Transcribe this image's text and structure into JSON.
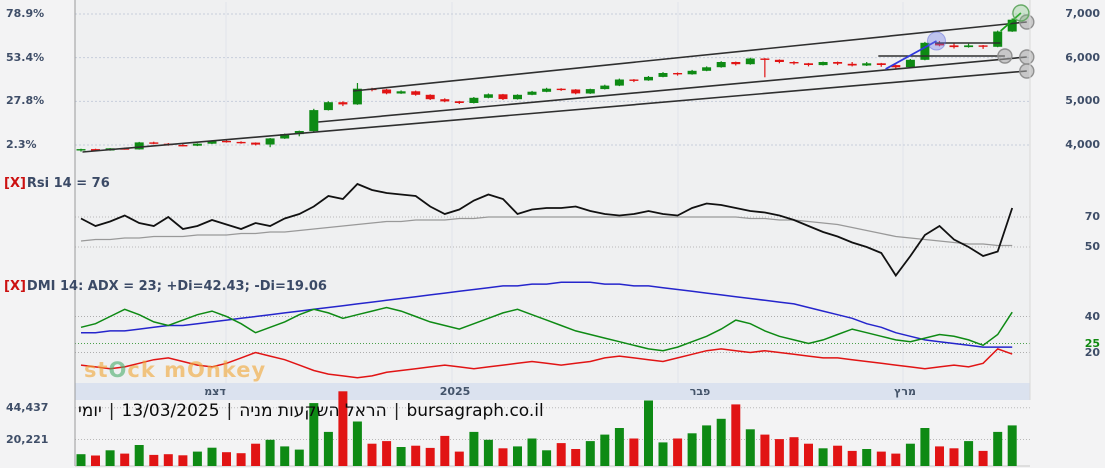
{
  "watermark": {
    "text_left": "st",
    "letter1": "O",
    "text_mid": "ck m",
    "letter2": "O",
    "text_right": "nkey"
  },
  "title": {
    "tokens": [
      "יומי",
      "13/03/2025",
      "הראל השקעות מניה",
      "bursagraph.co.il"
    ],
    "separator": "|"
  },
  "months": [
    "דצמ",
    "2025",
    "פבר",
    "מרץ"
  ],
  "colors": {
    "up": "#0e8a14",
    "down": "#e11414",
    "trend": "#2f2f2f",
    "blue_line": "#3038dd",
    "green_line": "#17a017",
    "axis_text": "#3f4e68",
    "strip_bg": "#dbe2ef",
    "grid": "#c7cedb"
  },
  "chart_data": [
    {
      "type": "candlestick",
      "name": "price-panel",
      "close_label": "[X]",
      "left_axis": [
        {
          "label": "78.9%",
          "price": 7000
        },
        {
          "label": "53.4%",
          "price": 6000
        },
        {
          "label": "27.8%",
          "price": 5000
        },
        {
          "label": "2.3%",
          "price": 4000
        }
      ],
      "right_axis": [
        {
          "label": "7,000",
          "price": 7000
        },
        {
          "label": "6,000",
          "price": 6000
        },
        {
          "label": "5,000",
          "price": 5000
        },
        {
          "label": "4,000",
          "price": 4000
        }
      ],
      "candles": [
        [
          3895,
          3915,
          3850,
          3905
        ],
        [
          3905,
          3915,
          3860,
          3875
        ],
        [
          3875,
          3930,
          3870,
          3925
        ],
        [
          3925,
          3940,
          3895,
          3900
        ],
        [
          3900,
          4070,
          3895,
          4060
        ],
        [
          4060,
          4075,
          4015,
          4030
        ],
        [
          4030,
          4045,
          3985,
          4000
        ],
        [
          4000,
          4020,
          3970,
          3985
        ],
        [
          3985,
          4040,
          3975,
          4030
        ],
        [
          4030,
          4105,
          4020,
          4095
        ],
        [
          4095,
          4110,
          4055,
          4070
        ],
        [
          4070,
          4085,
          4030,
          4055
        ],
        [
          4055,
          4060,
          3990,
          4010
        ],
        [
          4010,
          4160,
          3950,
          4150
        ],
        [
          4150,
          4260,
          4140,
          4250
        ],
        [
          4250,
          4330,
          4200,
          4320
        ],
        [
          4320,
          4830,
          4310,
          4800
        ],
        [
          4800,
          5000,
          4790,
          4980
        ],
        [
          4980,
          5000,
          4890,
          4930
        ],
        [
          4930,
          5420,
          4920,
          5290
        ],
        [
          5290,
          5310,
          5230,
          5270
        ],
        [
          5270,
          5285,
          5160,
          5180
        ],
        [
          5180,
          5250,
          5170,
          5230
        ],
        [
          5230,
          5245,
          5130,
          5150
        ],
        [
          5150,
          5160,
          5030,
          5050
        ],
        [
          5050,
          5070,
          4980,
          5000
        ],
        [
          5000,
          5010,
          4940,
          4960
        ],
        [
          4960,
          5100,
          4950,
          5080
        ],
        [
          5080,
          5180,
          5070,
          5160
        ],
        [
          5160,
          5170,
          5030,
          5050
        ],
        [
          5050,
          5160,
          5040,
          5150
        ],
        [
          5150,
          5240,
          5140,
          5220
        ],
        [
          5220,
          5310,
          5210,
          5290
        ],
        [
          5290,
          5300,
          5240,
          5270
        ],
        [
          5270,
          5280,
          5160,
          5180
        ],
        [
          5180,
          5290,
          5170,
          5280
        ],
        [
          5280,
          5380,
          5270,
          5360
        ],
        [
          5360,
          5520,
          5350,
          5500
        ],
        [
          5500,
          5510,
          5440,
          5480
        ],
        [
          5480,
          5580,
          5470,
          5560
        ],
        [
          5560,
          5670,
          5550,
          5650
        ],
        [
          5650,
          5660,
          5590,
          5620
        ],
        [
          5620,
          5720,
          5610,
          5700
        ],
        [
          5700,
          5800,
          5690,
          5780
        ],
        [
          5780,
          5920,
          5770,
          5900
        ],
        [
          5900,
          5910,
          5820,
          5850
        ],
        [
          5850,
          6000,
          5840,
          5980
        ],
        [
          5980,
          5990,
          5550,
          5950
        ],
        [
          5950,
          5960,
          5870,
          5900
        ],
        [
          5900,
          5920,
          5840,
          5870
        ],
        [
          5870,
          5880,
          5800,
          5830
        ],
        [
          5830,
          5910,
          5820,
          5900
        ],
        [
          5900,
          5910,
          5830,
          5860
        ],
        [
          5860,
          5900,
          5800,
          5820
        ],
        [
          5820,
          5900,
          5810,
          5870
        ],
        [
          5870,
          5880,
          5790,
          5830
        ],
        [
          5830,
          5840,
          5740,
          5780
        ],
        [
          5780,
          5970,
          5770,
          5950
        ],
        [
          5950,
          6360,
          5940,
          6340
        ],
        [
          6340,
          6380,
          6260,
          6280
        ],
        [
          6280,
          6330,
          6210,
          6240
        ],
        [
          6240,
          6320,
          6230,
          6280
        ],
        [
          6280,
          6290,
          6200,
          6250
        ],
        [
          6250,
          6620,
          6240,
          6600
        ],
        [
          6600,
          6900,
          6590,
          6870
        ]
      ],
      "annotations": {
        "lines": [
          {
            "name": "channel-top",
            "x1": 18.7,
            "p1": 5237,
            "x2": 65.0,
            "p2": 6817,
            "color": "trend"
          },
          {
            "name": "channel-mid",
            "x1": 16.3,
            "p1": 4527,
            "x2": 65.0,
            "p2": 6015,
            "color": "trend"
          },
          {
            "name": "channel-bottom",
            "x1": 0.1,
            "p1": 3840,
            "x2": 65.0,
            "p2": 5695,
            "color": "trend"
          },
          {
            "name": "resistance-upper",
            "x1": 58.7,
            "p1": 6335,
            "x2": 63.2,
            "p2": 6335,
            "color": "trend"
          },
          {
            "name": "resistance-lower",
            "x1": 54.8,
            "p1": 6038,
            "x2": 63.5,
            "p2": 6038,
            "color": "trend"
          },
          {
            "name": "blue-trendline",
            "x1": 55.3,
            "p1": 5740,
            "x2": 58.8,
            "p2": 6381,
            "color": "blue_line"
          },
          {
            "name": "green-trendline",
            "x1": 63.2,
            "p1": 6610,
            "x2": 64.6,
            "p2": 7023,
            "color": "green_line"
          }
        ],
        "markers": [
          {
            "name": "handle",
            "x": 65.0,
            "p": 6817,
            "kind": "handle"
          },
          {
            "name": "handle",
            "x": 65.0,
            "p": 6015,
            "kind": "handle"
          },
          {
            "name": "handle",
            "x": 65.0,
            "p": 5695,
            "kind": "handle"
          },
          {
            "name": "handle",
            "x": 63.5,
            "p": 6038,
            "kind": "handle"
          },
          {
            "name": "blue-highlight",
            "x": 58.8,
            "p": 6381,
            "kind": "blue"
          },
          {
            "name": "green-highlight",
            "x": 64.6,
            "p": 7023,
            "kind": "green"
          }
        ]
      }
    },
    {
      "type": "line",
      "name": "rsi-panel",
      "close_label": "[X]",
      "label": "Rsi 14 = 76",
      "gridlines": [
        70,
        50
      ],
      "right_axis": [
        {
          "label": "70",
          "value": 70
        },
        {
          "label": "50",
          "value": 50
        }
      ],
      "values": [
        69,
        64,
        67,
        71,
        66,
        64,
        70,
        62,
        64,
        68,
        65,
        62,
        66,
        64,
        69,
        72,
        77,
        84,
        82,
        92,
        88,
        86,
        85,
        84,
        77,
        72,
        75,
        81,
        85,
        82,
        72,
        75,
        76,
        76,
        77,
        74,
        72,
        71,
        72,
        74,
        72,
        71,
        76,
        79,
        78,
        76,
        74,
        73,
        71,
        68,
        64,
        60,
        57,
        53,
        50,
        46,
        31,
        44,
        58,
        64,
        55,
        50,
        44,
        47,
        76
      ],
      "ma": [
        54,
        55,
        55,
        56,
        56,
        57,
        57,
        57,
        58,
        58,
        58,
        59,
        59,
        60,
        60,
        61,
        62,
        63,
        64,
        65,
        66,
        67,
        67,
        68,
        68,
        68,
        69,
        69,
        70,
        70,
        70,
        70,
        70,
        70,
        70,
        70,
        70,
        70,
        70,
        70,
        70,
        70,
        70,
        70,
        70,
        70,
        69,
        69,
        68,
        68,
        67,
        66,
        65,
        63,
        61,
        59,
        57,
        56,
        55,
        54,
        53,
        52,
        52,
        51,
        51
      ]
    },
    {
      "type": "line",
      "name": "dmi-panel",
      "close_label": "[X]",
      "label": "DMI 14: ADX = 23; +Di=42.43; -Di=19.06",
      "gridlines_gray": [
        40,
        20
      ],
      "gridlines_green": [
        25
      ],
      "right_axis": [
        {
          "label": "40",
          "value": 40,
          "color": "#3f4e68"
        },
        {
          "label": "25",
          "value": 25,
          "color": "#118a11"
        },
        {
          "label": "20",
          "value": 20,
          "color": "#3f4e68"
        }
      ],
      "adx": [
        31,
        31,
        32,
        32,
        33,
        34,
        35,
        35,
        36,
        37,
        38,
        39,
        40,
        41,
        42,
        43,
        44,
        45,
        46,
        47,
        48,
        49,
        50,
        51,
        52,
        53,
        54,
        55,
        56,
        57,
        57,
        58,
        58,
        59,
        59,
        59,
        58,
        58,
        57,
        57,
        56,
        55,
        54,
        53,
        52,
        51,
        50,
        49,
        48,
        47,
        45,
        43,
        41,
        39,
        36,
        34,
        31,
        29,
        27,
        26,
        25,
        24,
        23,
        23,
        23
      ],
      "plus_di": [
        34,
        36,
        40,
        44,
        41,
        37,
        35,
        38,
        41,
        43,
        40,
        36,
        31,
        34,
        37,
        41,
        44,
        42,
        39,
        41,
        43,
        45,
        43,
        40,
        37,
        35,
        33,
        36,
        39,
        42,
        44,
        41,
        38,
        35,
        32,
        30,
        28,
        26,
        24,
        22,
        21,
        23,
        26,
        29,
        33,
        38,
        36,
        32,
        29,
        27,
        25,
        27,
        30,
        33,
        31,
        29,
        27,
        26,
        28,
        30,
        29,
        27,
        24,
        30,
        42.4
      ],
      "minus_di": [
        13,
        12,
        11,
        12,
        14,
        16,
        17,
        15,
        13,
        12,
        14,
        17,
        20,
        18,
        16,
        13,
        10,
        8,
        7,
        6,
        7,
        9,
        10,
        11,
        12,
        13,
        12,
        11,
        12,
        13,
        14,
        15,
        14,
        13,
        14,
        15,
        17,
        18,
        17,
        16,
        15,
        17,
        19,
        21,
        22,
        21,
        20,
        21,
        20,
        19,
        18,
        17,
        17,
        16,
        15,
        14,
        13,
        12,
        11,
        12,
        13,
        12,
        14,
        22,
        19.1
      ]
    },
    {
      "type": "bar",
      "name": "volume-panel",
      "left_axis": [
        {
          "label": "44,437",
          "value": 44437
        },
        {
          "label": "20,221",
          "value": 20221
        }
      ],
      "values": [
        9000,
        8000,
        12000,
        9500,
        16000,
        8500,
        9000,
        8200,
        11000,
        14000,
        10500,
        9800,
        17000,
        20000,
        15000,
        12500,
        48000,
        26000,
        57000,
        34000,
        17000,
        19000,
        14500,
        15500,
        13800,
        23000,
        11000,
        26000,
        20000,
        13500,
        15000,
        21000,
        12000,
        17500,
        13000,
        19000,
        24000,
        29000,
        21000,
        50000,
        18000,
        21000,
        25000,
        31000,
        36000,
        47000,
        28000,
        24000,
        20500,
        22000,
        17000,
        13500,
        15500,
        11500,
        13000,
        11000,
        9500,
        17000,
        29000,
        15000,
        13500,
        19000,
        11500,
        26000,
        31000
      ]
    }
  ]
}
